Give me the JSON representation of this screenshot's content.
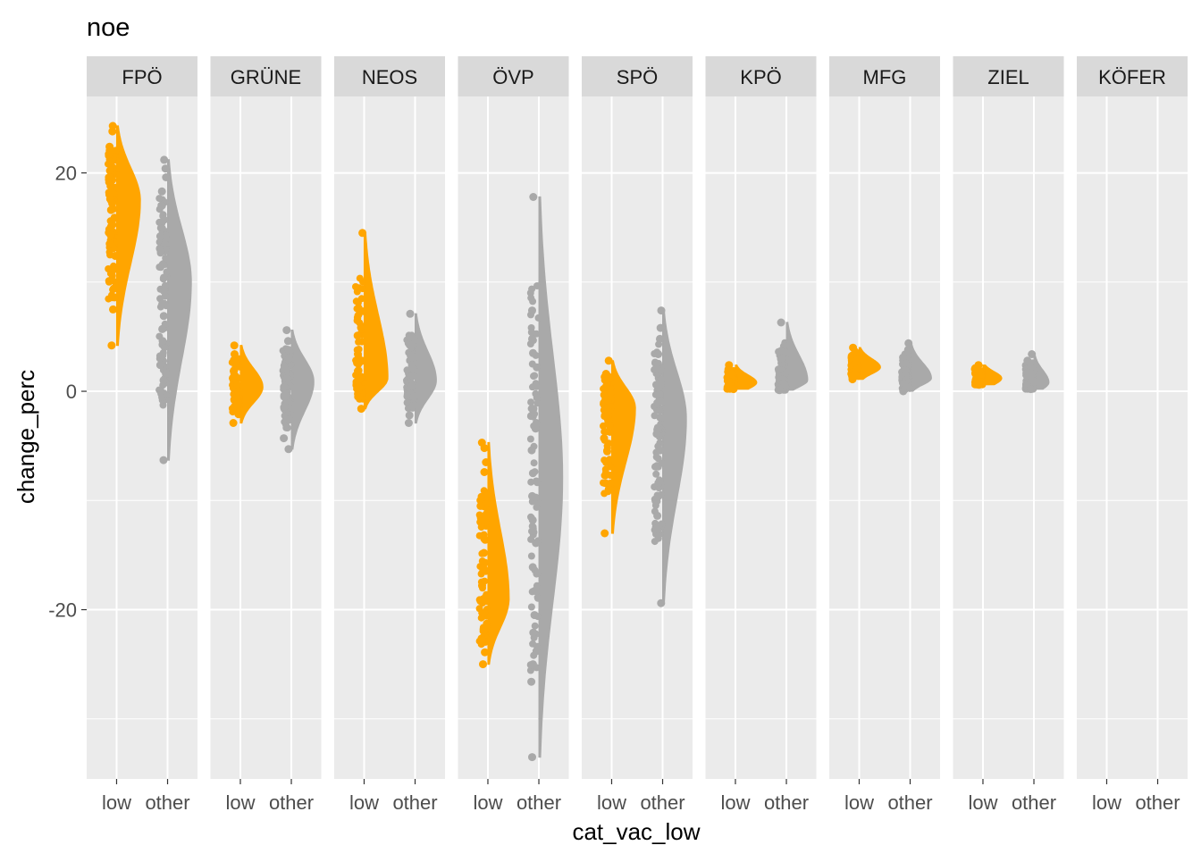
{
  "chart_data": {
    "type": "violin",
    "title": "noe",
    "xlabel": "cat_vac_low",
    "ylabel": "change_perc",
    "ylim": [
      -35.5,
      27
    ],
    "yticks": [
      -20,
      0,
      20
    ],
    "categories": [
      "low",
      "other"
    ],
    "colors": {
      "low": "#FFA500",
      "other": "#A9A9A9"
    },
    "panel_background": "#EBEBEB",
    "strip_background": "#D9D9D9",
    "grid": "white",
    "facets": [
      {
        "name": "FPÖ",
        "low": {
          "min": 4.2,
          "max": 24.3,
          "mode": 17.5,
          "width": 0.95,
          "points": [
            24.3,
            23.8,
            22.4,
            21.9,
            21.0,
            20.2,
            19.6,
            18.8,
            18.1,
            17.5,
            17.2,
            16.6,
            15.9,
            15.1,
            14.3,
            13.5,
            12.4,
            11.2,
            10.1,
            9.4,
            8.6,
            7.5,
            4.2
          ]
        },
        "other": {
          "min": -6.3,
          "max": 21.2,
          "mode": 10.0,
          "width": 0.95,
          "points": [
            21.2,
            20.4,
            19.6,
            18.3,
            17.0,
            15.7,
            14.2,
            12.8,
            11.6,
            10.4,
            9.2,
            8.0,
            6.9,
            5.7,
            4.6,
            3.3,
            2.4,
            1.6,
            1.0,
            0.0,
            -6.3
          ]
        }
      },
      {
        "name": "GRÜNE",
        "low": {
          "min": -2.9,
          "max": 4.2,
          "mode": 0.4,
          "width": 0.9,
          "points": [
            4.2,
            3.4,
            2.7,
            1.9,
            1.2,
            0.6,
            0.0,
            -0.6,
            -1.2,
            -2.1,
            -2.9
          ]
        },
        "other": {
          "min": -5.3,
          "max": 5.6,
          "mode": 0.9,
          "width": 0.9,
          "points": [
            5.6,
            4.6,
            3.8,
            3.0,
            2.1,
            1.2,
            0.4,
            -0.4,
            -1.4,
            -2.6,
            -4.3,
            -5.3
          ]
        }
      },
      {
        "name": "NEOS",
        "low": {
          "min": -1.6,
          "max": 14.5,
          "mode": 1.2,
          "width": 0.95,
          "points": [
            14.5,
            5.1,
            3.4,
            2.6,
            1.9,
            1.1,
            0.3,
            -0.5,
            -1.6
          ]
        },
        "other": {
          "min": -2.9,
          "max": 7.1,
          "mode": 1.0,
          "width": 0.85,
          "points": [
            7.1,
            5.0,
            4.2,
            3.3,
            2.4,
            1.4,
            0.5,
            -0.5,
            -1.4,
            -2.2,
            -2.9
          ]
        }
      },
      {
        "name": "ÖVP",
        "low": {
          "min": -25.0,
          "max": -4.7,
          "mode": -19.0,
          "width": 0.85,
          "points": [
            -4.7,
            -5.2,
            -6.5,
            -7.4,
            -10.5,
            -11.4,
            -13.6,
            -14.8,
            -16.2,
            -17.8,
            -19.1,
            -20.3,
            -21.6,
            -22.8,
            -23.9,
            -25.0
          ]
        },
        "other": {
          "min": -33.5,
          "max": 17.8,
          "mode": -8.0,
          "width": 0.95,
          "points": [
            17.8,
            7.4,
            4.8,
            3.5,
            2.2,
            0.5,
            -1.6,
            -3.4,
            -5.4,
            -7.5,
            -9.6,
            -11.8,
            -13.9,
            -16.1,
            -18.3,
            -20.5,
            -22.1,
            -23.8,
            -25.0,
            -26.6,
            -33.5
          ]
        }
      },
      {
        "name": "SPÖ",
        "low": {
          "min": -13.0,
          "max": 2.8,
          "mode": -1.5,
          "width": 0.95,
          "points": [
            2.8,
            1.6,
            0.4,
            -0.8,
            -1.9,
            -3.1,
            -4.3,
            -5.5,
            -6.4,
            -8.4,
            -13.0
          ]
        },
        "other": {
          "min": -19.4,
          "max": 7.4,
          "mode": -2.5,
          "width": 0.95,
          "points": [
            7.4,
            5.8,
            4.8,
            3.4,
            2.1,
            0.6,
            -0.9,
            -2.4,
            -3.9,
            -5.4,
            -6.9,
            -8.4,
            -9.9,
            -11.4,
            -12.6,
            -19.4
          ]
        }
      },
      {
        "name": "KPÖ",
        "low": {
          "min": 0.2,
          "max": 2.4,
          "mode": 0.8,
          "width": 0.85,
          "points": [
            2.4,
            2.0,
            1.6,
            1.2,
            0.8,
            0.5,
            0.2
          ]
        },
        "other": {
          "min": 0.1,
          "max": 6.3,
          "mode": 1.0,
          "width": 0.85,
          "points": [
            6.3,
            2.3,
            1.9,
            1.5,
            1.1,
            0.7,
            0.4,
            0.1
          ]
        }
      },
      {
        "name": "MFG",
        "low": {
          "min": 1.1,
          "max": 4.0,
          "mode": 2.2,
          "width": 0.85,
          "points": [
            4.0,
            3.6,
            2.9,
            2.4,
            2.0,
            1.6,
            1.1
          ]
        },
        "other": {
          "min": 0.0,
          "max": 4.4,
          "mode": 1.2,
          "width": 0.85,
          "points": [
            4.4,
            3.8,
            3.1,
            2.5,
            1.9,
            1.4,
            1.0,
            0.6,
            0.2,
            0.0
          ]
        }
      },
      {
        "name": "ZIEL",
        "low": {
          "min": 0.6,
          "max": 2.4,
          "mode": 1.2,
          "width": 0.75,
          "points": [
            2.4,
            2.0,
            1.7,
            1.4,
            1.1,
            0.8,
            0.6
          ]
        },
        "other": {
          "min": 0.2,
          "max": 3.4,
          "mode": 0.8,
          "width": 0.6,
          "points": [
            3.4,
            2.8,
            2.2,
            1.7,
            1.3,
            0.9,
            0.5,
            0.2
          ]
        }
      },
      {
        "name": "KÖFER"
      }
    ]
  }
}
